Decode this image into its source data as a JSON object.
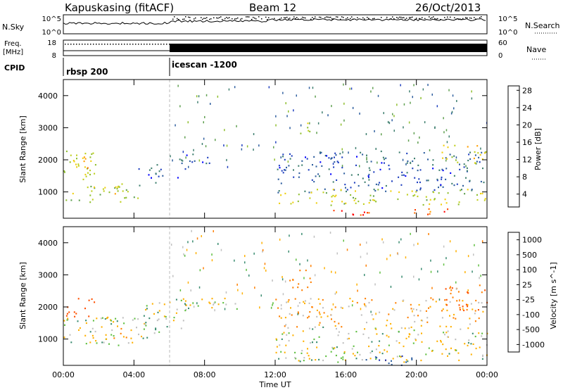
{
  "header": {
    "station": "Kapuskasing (fitACF)",
    "beam": "Beam 12",
    "date": "26/Oct/2013"
  },
  "status_panels": {
    "nsky": {
      "label": "N.Sky",
      "ticks": [
        "10^5",
        "10^0"
      ]
    },
    "nsearch": {
      "label": "N.Search",
      "ticks": [
        "10^5",
        "10^0"
      ]
    },
    "freq": {
      "label_line1": "Freq.",
      "label_line2": "[MHz]",
      "ticks": [
        "18",
        "8"
      ]
    },
    "nave": {
      "label": "Nave",
      "ticks": [
        "60",
        "0"
      ]
    },
    "cpid": {
      "label": "CPID",
      "segments": [
        {
          "name": "rbsp 200",
          "start_hour": 0
        },
        {
          "name": "icescan -1200",
          "start_hour": 6
        }
      ]
    }
  },
  "colorbars": {
    "power": {
      "title": "Power [dB]",
      "ticks": [
        "28",
        "24",
        "20",
        "16",
        "12",
        "8",
        "4"
      ],
      "colors": [
        "#0000ff",
        "#1f3fbf",
        "#2f5f9f",
        "#3f7f6f",
        "#5f9f4f",
        "#8fbf2f",
        "#bfcf1f",
        "#efcf0f",
        "#ff9f00",
        "#ff6f00",
        "#ff3f00",
        "#ff0000"
      ]
    },
    "velocity": {
      "title": "Velocity [m s^-1]",
      "ticks": [
        "1000",
        "500",
        "100",
        "25",
        "-25",
        "-100",
        "-500",
        "-1000"
      ],
      "colors": [
        "#2030b0",
        "#3060a0",
        "#3a8c70",
        "#5fbf40",
        "#c0c0c0",
        "#c0c0c0",
        "#ffb000",
        "#ff8000",
        "#ff5000",
        "#ff0000"
      ]
    }
  },
  "chart_data": [
    {
      "type": "heatmap",
      "name": "power",
      "ylabel": "Slant Range [km]",
      "xlabel": "",
      "xlim": [
        0,
        24
      ],
      "ylim": [
        180,
        4500
      ],
      "yticks": [
        "4000",
        "3000",
        "2000",
        "1000"
      ],
      "xtick_values": [
        0,
        4,
        8,
        12,
        16,
        20,
        24
      ],
      "clim": [
        0,
        30
      ],
      "regions": [
        {
          "t": [
            0.0,
            1.8
          ],
          "r": [
            1400,
            2350
          ],
          "v": 16
        },
        {
          "t": [
            0.3,
            1.6
          ],
          "r": [
            1600,
            2150
          ],
          "v": 20
        },
        {
          "t": [
            0.0,
            4.3
          ],
          "r": [
            700,
            1200
          ],
          "v": 14
        },
        {
          "t": [
            2.1,
            4.0
          ],
          "r": [
            950,
            1300
          ],
          "v": 18
        },
        {
          "t": [
            4.2,
            5.7
          ],
          "r": [
            1200,
            2000
          ],
          "v": 6
        },
        {
          "t": [
            6.0,
            6.8
          ],
          "r": [
            1200,
            1600
          ],
          "v": 5
        },
        {
          "t": [
            6.5,
            8.5
          ],
          "r": [
            1700,
            2300
          ],
          "v": 5
        },
        {
          "t": [
            12.0,
            24.0
          ],
          "r": [
            1000,
            2300
          ],
          "v": 6
        },
        {
          "t": [
            12.0,
            24.0
          ],
          "r": [
            600,
            1100
          ],
          "v": 16
        },
        {
          "t": [
            14.2,
            22.0
          ],
          "r": [
            300,
            500
          ],
          "v": 26
        },
        {
          "t": [
            21.4,
            24.0
          ],
          "r": [
            1900,
            2500
          ],
          "v": 18
        },
        {
          "t": [
            13.4,
            14.1
          ],
          "r": [
            2800,
            3300
          ],
          "v": 14
        }
      ]
    },
    {
      "type": "heatmap",
      "name": "velocity",
      "ylabel": "Slant Range [km]",
      "xlabel": "Time UT",
      "xlim": [
        0,
        24
      ],
      "ylim": [
        180,
        4500
      ],
      "yticks": [
        "4000",
        "3000",
        "2000",
        "1000"
      ],
      "xticks": [
        "00:00",
        "04:00",
        "08:00",
        "12:00",
        "16:00",
        "20:00",
        "00:00"
      ],
      "xtick_values": [
        0,
        4,
        8,
        12,
        16,
        20,
        24
      ],
      "regions": [
        {
          "t": [
            0.0,
            1.8
          ],
          "r": [
            1700,
            2400
          ],
          "v": -600
        },
        {
          "t": [
            0.0,
            4.8
          ],
          "r": [
            800,
            1700
          ],
          "v": 0
        },
        {
          "t": [
            4.5,
            7.0
          ],
          "r": [
            1200,
            2300
          ],
          "v": 0
        },
        {
          "t": [
            6.5,
            9.8
          ],
          "r": [
            1900,
            2300
          ],
          "v": 0
        },
        {
          "t": [
            12.0,
            24.0
          ],
          "r": [
            300,
            1400
          ],
          "v": 0
        },
        {
          "t": [
            12.0,
            24.0
          ],
          "r": [
            1400,
            2300
          ],
          "v": -60
        },
        {
          "t": [
            21.5,
            24.0
          ],
          "r": [
            1900,
            2700
          ],
          "v": -300
        },
        {
          "t": [
            12.8,
            14.2
          ],
          "r": [
            2500,
            3200
          ],
          "v": -150
        },
        {
          "t": [
            2.3,
            3.6
          ],
          "r": [
            1000,
            1400
          ],
          "v": -200
        },
        {
          "t": [
            17.0,
            20.5
          ],
          "r": [
            200,
            500
          ],
          "v": 700
        }
      ]
    }
  ]
}
